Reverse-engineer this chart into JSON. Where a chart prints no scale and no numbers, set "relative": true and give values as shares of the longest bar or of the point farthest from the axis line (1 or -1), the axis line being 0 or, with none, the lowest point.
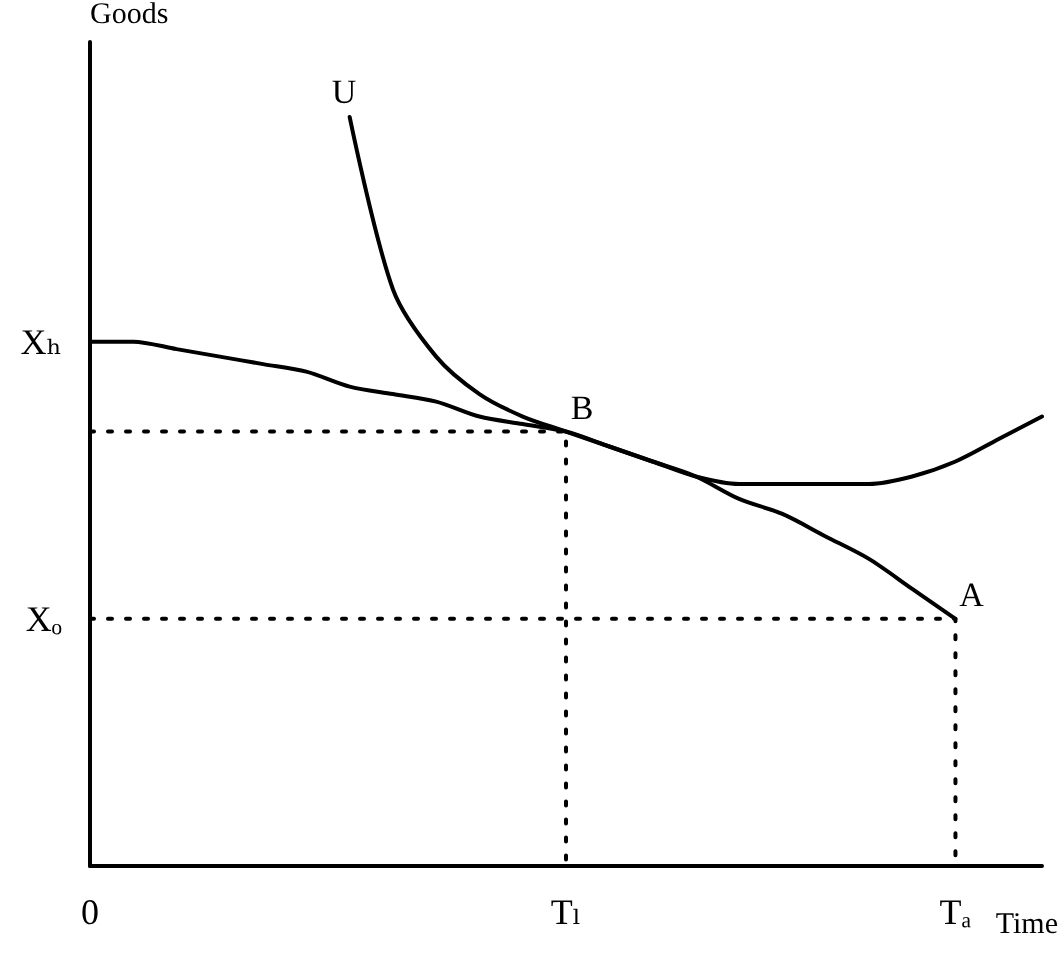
{
  "chart_data": {
    "type": "line",
    "xlabel": "Time",
    "ylabel": "Goods",
    "relative": true,
    "categories": [
      "0",
      null,
      null,
      null,
      null,
      null,
      null,
      null,
      null,
      null,
      null,
      "Tₗ",
      null,
      null,
      null,
      null,
      null,
      null,
      null,
      null,
      "Tₐ",
      null,
      null
    ],
    "grid": false,
    "marker": "none",
    "series": [
      {
        "color": "#000000",
        "line_style": "solid",
        "values": [
          0.7,
          0.7,
          0.69,
          0.68,
          0.67,
          0.66,
          0.64,
          0.63,
          0.62,
          0.6,
          0.59,
          0.58,
          0.56,
          0.54,
          0.52,
          0.49,
          0.47,
          0.44,
          0.41,
          0.37,
          0.33,
          null,
          null
        ]
      },
      {
        "color": "#000000",
        "line_style": "solid",
        "values": [
          null,
          null,
          null,
          null,
          null,
          null,
          1,
          0.77,
          0.68,
          0.63,
          0.6,
          0.58,
          0.56,
          0.54,
          0.52,
          0.51,
          0.51,
          0.51,
          0.51,
          0.52,
          0.54,
          0.57,
          0.6
        ]
      },
      {
        "color": "#000000",
        "line_style": "dotted",
        "x": [
          "0",
          "Tₗ",
          "Tₗ"
        ],
        "values": [
          0.58,
          0.58,
          0
        ]
      },
      {
        "color": "#000000",
        "line_style": "dotted",
        "x": [
          "0",
          "Tₐ",
          "Tₐ"
        ],
        "values": [
          0.33,
          0.33,
          0
        ]
      }
    ],
    "annotations": [
      "U",
      {
        "text": "Xₕ",
        "x": "0",
        "y": 0.7
      },
      {
        "text": "Xₒ",
        "x": "0",
        "y": 0.33
      },
      {
        "text": "B",
        "x": "Tₗ",
        "y": 0.58
      },
      {
        "text": "A",
        "x": "Tₐ",
        "y": 0.33
      }
    ]
  }
}
